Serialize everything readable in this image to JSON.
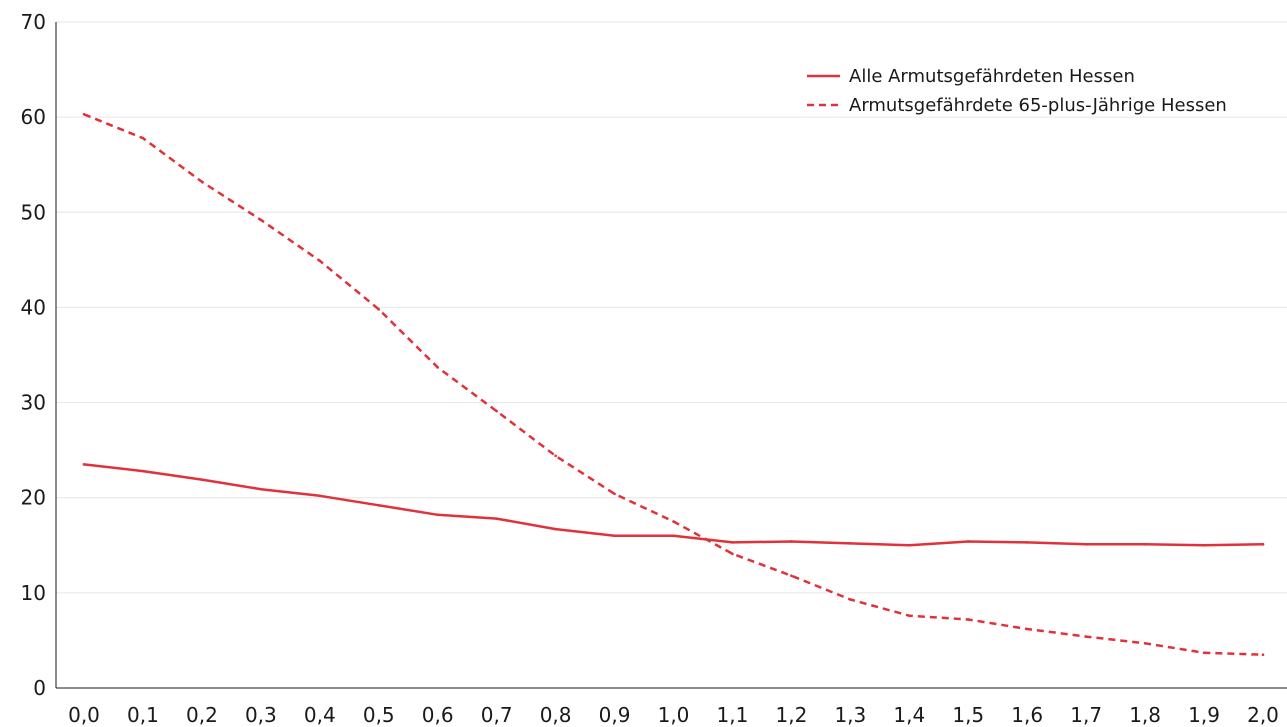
{
  "chart_data": {
    "type": "line",
    "title": "",
    "xlabel": "",
    "ylabel": "",
    "x": [
      0.0,
      0.1,
      0.2,
      0.3,
      0.4,
      0.5,
      0.6,
      0.7,
      0.8,
      0.9,
      1.0,
      1.1,
      1.2,
      1.3,
      1.4,
      1.5,
      1.6,
      1.7,
      1.8,
      1.9,
      2.0
    ],
    "x_tick_labels": [
      "0,0",
      "0,1",
      "0,2",
      "0,3",
      "0,4",
      "0,5",
      "0,6",
      "0,7",
      "0,8",
      "0,9",
      "1,0",
      "1,1",
      "1,2",
      "1,3",
      "1,4",
      "1,5",
      "1,6",
      "1,7",
      "1,8",
      "1,9",
      "2,0"
    ],
    "y_ticks": [
      0,
      10,
      20,
      30,
      40,
      50,
      60,
      70
    ],
    "ylim": [
      0,
      70
    ],
    "grid": "horizontal",
    "legend_position": "top-right",
    "series": [
      {
        "name": "Alle Armutsgefährdeten Hessen",
        "style": "solid",
        "color": "#e0323a",
        "values": [
          23.5,
          22.8,
          21.9,
          20.9,
          20.2,
          19.2,
          18.2,
          17.8,
          16.7,
          16.0,
          16.0,
          15.3,
          15.4,
          15.2,
          15.0,
          15.4,
          15.3,
          15.1,
          15.1,
          15.0,
          15.1
        ]
      },
      {
        "name": "Armutsgefährdete 65-plus-Jährige Hessen",
        "style": "dashed",
        "color": "#e0323a",
        "values": [
          60.3,
          57.8,
          53.2,
          49.2,
          44.9,
          39.8,
          33.7,
          29.1,
          24.4,
          20.4,
          17.5,
          14.1,
          11.8,
          9.3,
          7.6,
          7.2,
          6.2,
          5.4,
          4.7,
          3.7,
          3.5
        ]
      }
    ]
  }
}
